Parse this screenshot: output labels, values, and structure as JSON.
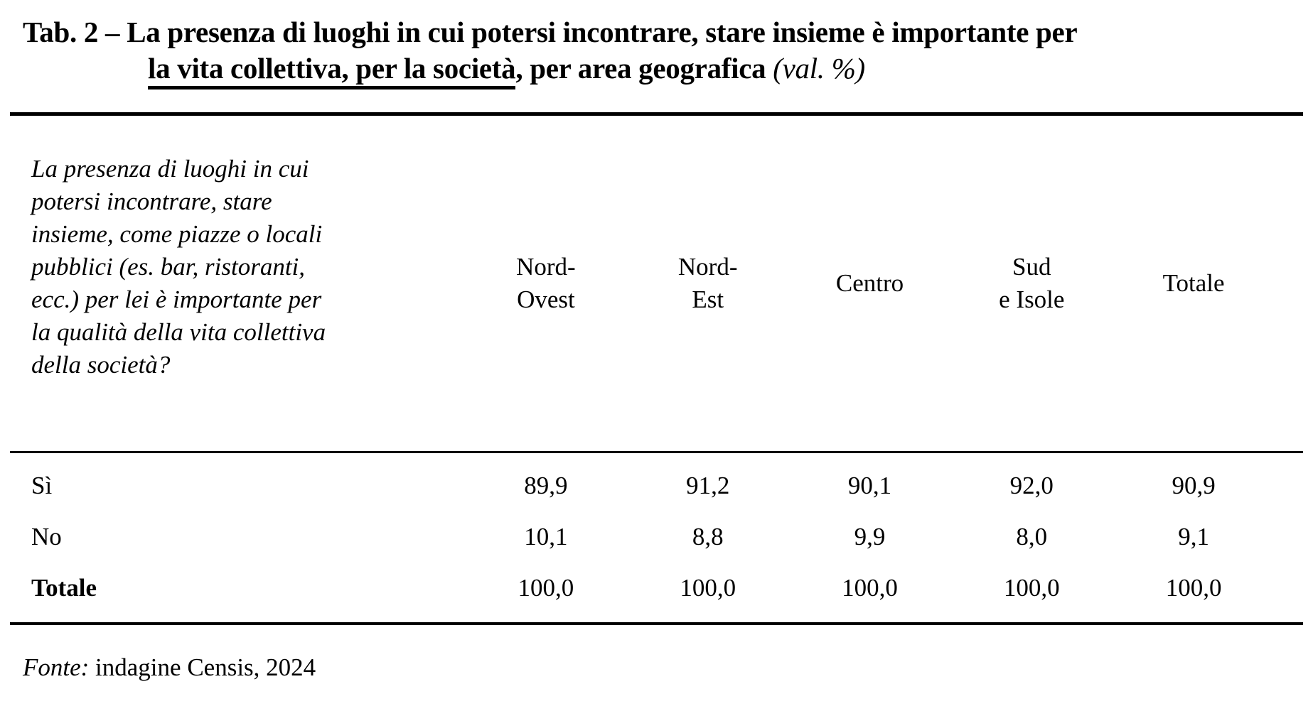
{
  "title": {
    "prefix": "Tab. 2 – ",
    "line1_rest": "La presenza di luoghi in cui potersi incontrare, stare insieme è importante per",
    "underlined": "la vita collettiva, per la società",
    "after_underline": ", per area geografica ",
    "note": "(val. %)"
  },
  "table": {
    "stub_question": "La presenza di luoghi in cui potersi incontrare, stare insieme, come piazze o locali pubblici (es. bar, ristoranti, ecc.) per lei è importante per la qualità della vita collettiva della società?",
    "stub_lines": [
      "La presenza di luoghi in cui",
      "potersi incontrare, stare",
      "insieme, come piazze o locali",
      "pubblici (es. bar, ristoranti,",
      "ecc.) per lei è importante per",
      "la qualità della vita collettiva",
      "della società?"
    ],
    "columns": [
      "Nord-Ovest",
      "Nord-Est",
      "Centro",
      "Sud e Isole",
      "Totale"
    ],
    "columns_lines": [
      [
        "Nord-",
        "Ovest"
      ],
      [
        "Nord-",
        "Est"
      ],
      [
        "Centro"
      ],
      [
        "Sud",
        "e Isole"
      ],
      [
        "Totale"
      ]
    ],
    "rows": [
      {
        "label": "Sì",
        "values": [
          "89,9",
          "91,2",
          "90,1",
          "92,0",
          "90,9"
        ]
      },
      {
        "label": "No",
        "values": [
          "10,1",
          "8,8",
          "9,9",
          "8,0",
          "9,1"
        ]
      },
      {
        "label": "Totale",
        "values": [
          "100,0",
          "100,0",
          "100,0",
          "100,0",
          "100,0"
        ]
      }
    ]
  },
  "footer": {
    "source_label": "Fonte:",
    "source_text": " indagine Censis, 2024"
  },
  "colors": {
    "text": "#000000",
    "background": "#ffffff",
    "rule": "#000000"
  }
}
